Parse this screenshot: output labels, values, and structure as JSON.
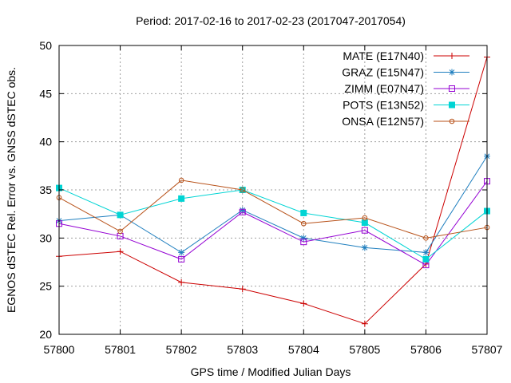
{
  "chart_data": {
    "type": "line",
    "title": "Period: 2017-02-16 to 2017-02-23 (2017047-2017054)",
    "xlabel": "GPS time / Modified Julian Days",
    "ylabel": "EGNOS dSTEC Rel. Error vs. GNSS dSTEC obs.",
    "xlim": [
      57800,
      57807
    ],
    "ylim": [
      20,
      50
    ],
    "x": [
      57800,
      57801,
      57802,
      57803,
      57804,
      57805,
      57806,
      57807
    ],
    "x_ticks": [
      57800,
      57801,
      57802,
      57803,
      57804,
      57805,
      57806,
      57807
    ],
    "y_ticks": [
      20,
      25,
      30,
      35,
      40,
      45,
      50
    ],
    "grid": true,
    "legend_position": "top-right",
    "series": [
      {
        "name": "MATE (E17N40)",
        "color": "#cc0000",
        "marker": "plus",
        "values": [
          28.1,
          28.6,
          25.4,
          24.7,
          23.2,
          21.1,
          27.3,
          48.8
        ]
      },
      {
        "name": "GRAZ (E15N47)",
        "color": "#1f7fbf",
        "marker": "star",
        "values": [
          31.8,
          32.4,
          28.5,
          32.9,
          30.0,
          29.0,
          28.5,
          38.5
        ]
      },
      {
        "name": "ZIMM (E07N47)",
        "color": "#9400d3",
        "marker": "open-square",
        "values": [
          31.5,
          30.2,
          27.8,
          32.7,
          29.6,
          30.8,
          27.2,
          35.9
        ]
      },
      {
        "name": "POTS (E13N52)",
        "color": "#00d4d4",
        "marker": "filled-square",
        "values": [
          35.2,
          32.4,
          34.1,
          35.0,
          32.6,
          31.6,
          27.8,
          32.8
        ]
      },
      {
        "name": "ONSA (E12N57)",
        "color": "#b8521a",
        "marker": "open-circle",
        "values": [
          34.2,
          30.7,
          36.0,
          35.0,
          31.5,
          32.1,
          30.0,
          31.1
        ]
      }
    ]
  }
}
